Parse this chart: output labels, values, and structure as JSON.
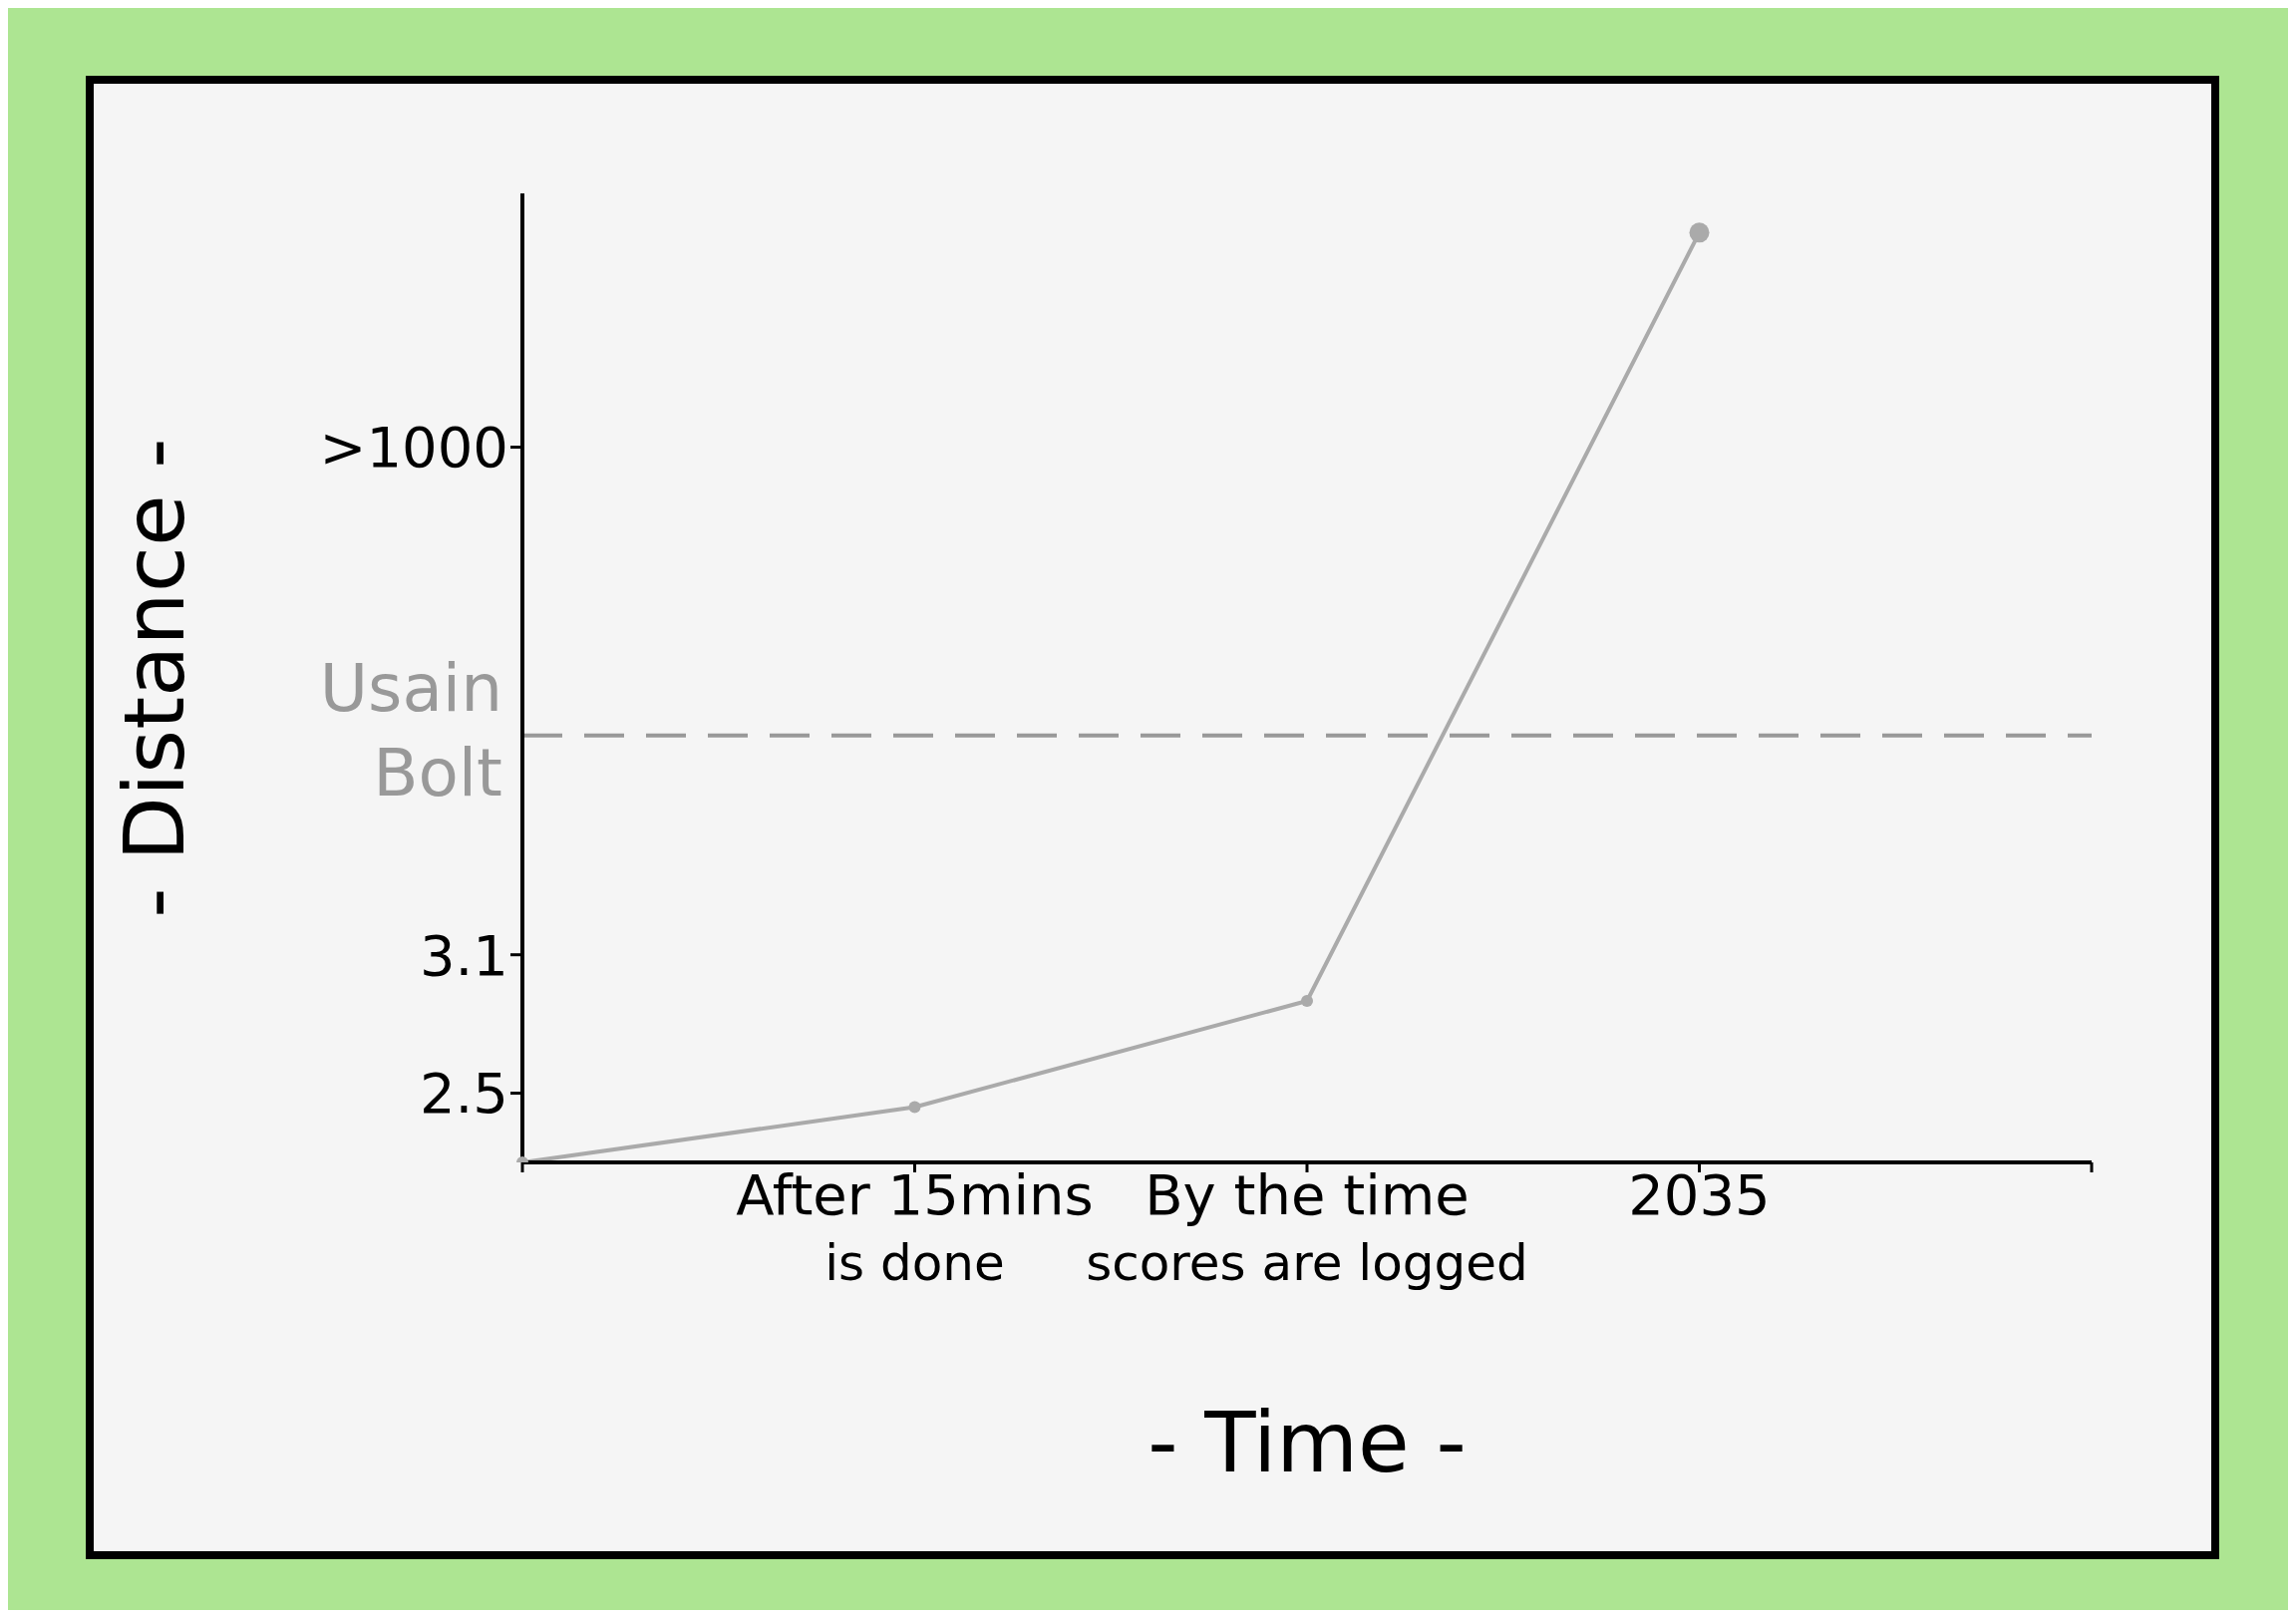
{
  "chart_data": {
    "type": "line",
    "xlabel": "- Time -",
    "ylabel": "- Distance -",
    "categories": [
      null,
      "After 15mins\nis done",
      "By the time\nscores are logged",
      "2035",
      null
    ],
    "series": [
      {
        "color": "#aaaaaa",
        "values": [
          2.2,
          2.44,
          2.9,
          6.23,
          null
        ]
      }
    ],
    "ylim": [
      2.2,
      6.4
    ],
    "yticks": [
      2.5,
      3.1,
      {
        "value": 5.3,
        "label": ">1000"
      }
    ],
    "ref_lines": [
      {
        "axis": "y",
        "value": 4.05,
        "label": "Usain Bolt",
        "color": "#999999",
        "line_style": "dashed"
      }
    ],
    "grid": false,
    "legend": false,
    "marker": "circle",
    "line_style": "solid"
  }
}
